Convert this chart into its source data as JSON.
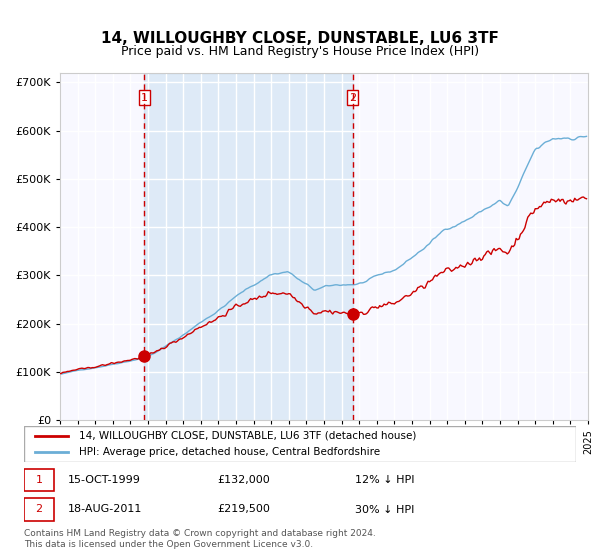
{
  "title": "14, WILLOUGHBY CLOSE, DUNSTABLE, LU6 3TF",
  "subtitle": "Price paid vs. HM Land Registry's House Price Index (HPI)",
  "legend_line1": "14, WILLOUGHBY CLOSE, DUNSTABLE, LU6 3TF (detached house)",
  "legend_line2": "HPI: Average price, detached house, Central Bedfordshire",
  "sale1_date": "15-OCT-1999",
  "sale1_price": 132000,
  "sale1_label": "12% ↓ HPI",
  "sale2_date": "18-AUG-2011",
  "sale2_price": 219500,
  "sale2_label": "30% ↓ HPI",
  "footer": "Contains HM Land Registry data © Crown copyright and database right 2024.\nThis data is licensed under the Open Government Licence v3.0.",
  "hpi_color": "#6baed6",
  "price_color": "#cc0000",
  "shading_color": "#ddeeff",
  "dashed_color": "#cc0000",
  "ylim": [
    0,
    720000
  ],
  "yticks": [
    0,
    100000,
    200000,
    300000,
    400000,
    500000,
    600000,
    700000
  ]
}
